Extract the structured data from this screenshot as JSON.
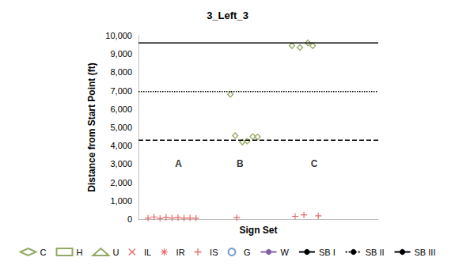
{
  "chart_data": {
    "type": "scatter",
    "title": "3_Left_3",
    "x_label": "Sign Set",
    "y_label": "Distance from Start Point (ft)",
    "xlim": [
      0,
      30
    ],
    "ylim": [
      0,
      10000
    ],
    "yticks": [
      0,
      1000,
      2000,
      3000,
      4000,
      5000,
      6000,
      7000,
      8000,
      9000,
      10000
    ],
    "grid": false,
    "tick_labels": "y",
    "legend": "bottom",
    "annotations": [
      {
        "text": "A",
        "x": 5,
        "y": 3000
      },
      {
        "text": "B",
        "x": 12.7,
        "y": 3000
      },
      {
        "text": "C",
        "x": 22,
        "y": 3000
      }
    ],
    "series": [
      {
        "name": "C",
        "type": "scatter",
        "marker": "diamond",
        "color": "#77933c",
        "x": [
          11.5,
          12.1,
          13.0,
          13.6,
          14.3,
          14.9,
          19.2,
          20.2,
          21.2,
          21.8
        ],
        "values": [
          6800,
          4550,
          4200,
          4250,
          4500,
          4480,
          9450,
          9350,
          9600,
          9450
        ]
      },
      {
        "name": "H",
        "type": "scatter",
        "marker": "square",
        "color": "#77933c",
        "x": [],
        "values": []
      },
      {
        "name": "U",
        "type": "scatter",
        "marker": "triangle",
        "color": "#77933c",
        "x": [],
        "values": []
      },
      {
        "name": "IL",
        "type": "scatter",
        "marker": "x",
        "color": "#e0403c",
        "x": [],
        "values": []
      },
      {
        "name": "IR",
        "type": "scatter",
        "marker": "star",
        "color": "#e0403c",
        "x": [],
        "values": []
      },
      {
        "name": "IS",
        "type": "scatter",
        "marker": "plus",
        "color": "#e0403c",
        "x": [
          1.2,
          1.95,
          2.7,
          3.45,
          4.2,
          4.95,
          5.7,
          6.45,
          7.2,
          12.3,
          19.6,
          20.7,
          22.5
        ],
        "values": [
          50,
          120,
          40,
          100,
          60,
          90,
          50,
          60,
          50,
          80,
          150,
          230,
          180
        ]
      },
      {
        "name": "G",
        "type": "scatter",
        "marker": "circle",
        "color": "#4f81bd",
        "x": [],
        "values": []
      },
      {
        "name": "W",
        "type": "line",
        "line_style": "solid",
        "color": "#7f60a8",
        "values": []
      },
      {
        "name": "SB I",
        "type": "line",
        "line_style": "dashed",
        "color": "#000000",
        "values": [
          4300
        ]
      },
      {
        "name": "SB II",
        "type": "line",
        "line_style": "dotted",
        "color": "#000000",
        "values": [
          6950
        ]
      },
      {
        "name": "SB III",
        "type": "line",
        "line_style": "solid",
        "color": "#000000",
        "values": [
          9600
        ]
      }
    ]
  }
}
